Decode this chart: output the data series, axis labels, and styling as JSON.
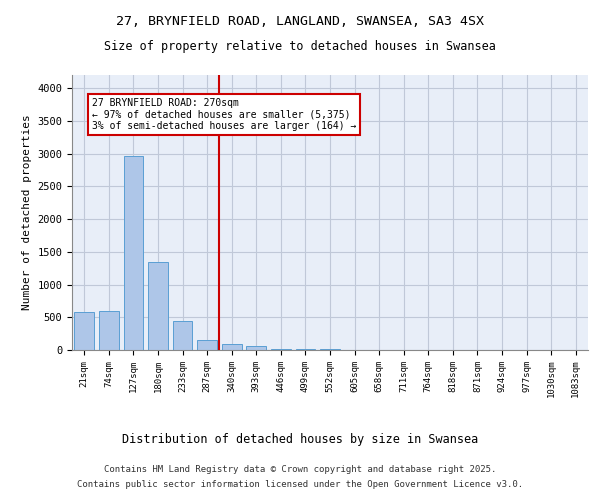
{
  "title_line1": "27, BRYNFIELD ROAD, LANGLAND, SWANSEA, SA3 4SX",
  "title_line2": "Size of property relative to detached houses in Swansea",
  "xlabel": "Distribution of detached houses by size in Swansea",
  "ylabel": "Number of detached properties",
  "categories": [
    "21sqm",
    "74sqm",
    "127sqm",
    "180sqm",
    "233sqm",
    "287sqm",
    "340sqm",
    "393sqm",
    "446sqm",
    "499sqm",
    "552sqm",
    "605sqm",
    "658sqm",
    "711sqm",
    "764sqm",
    "818sqm",
    "871sqm",
    "924sqm",
    "977sqm",
    "1030sqm",
    "1083sqm"
  ],
  "values": [
    580,
    600,
    2960,
    1350,
    440,
    160,
    90,
    55,
    20,
    10,
    8,
    5,
    4,
    3,
    2,
    2,
    1,
    1,
    1,
    1,
    1
  ],
  "bar_color": "#aec6e8",
  "bar_edge_color": "#5a9fd4",
  "background_color": "#e8eef8",
  "grid_color": "#c0c8d8",
  "red_line_x": 5.5,
  "annotation_text": "27 BRYNFIELD ROAD: 270sqm\n← 97% of detached houses are smaller (5,375)\n3% of semi-detached houses are larger (164) →",
  "annotation_box_color": "#ffffff",
  "annotation_edge_color": "#cc0000",
  "red_line_color": "#cc0000",
  "footer_line1": "Contains HM Land Registry data © Crown copyright and database right 2025.",
  "footer_line2": "Contains public sector information licensed under the Open Government Licence v3.0.",
  "ylim": [
    0,
    4200
  ],
  "yticks": [
    0,
    500,
    1000,
    1500,
    2000,
    2500,
    3000,
    3500,
    4000
  ]
}
